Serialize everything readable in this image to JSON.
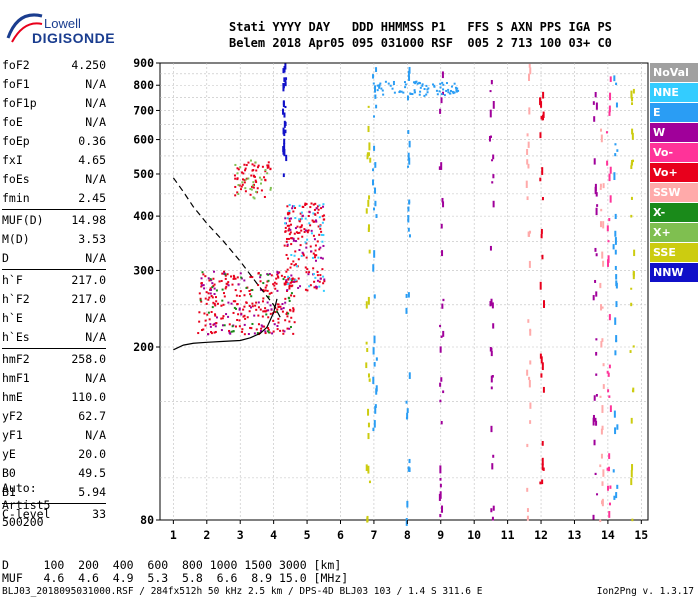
{
  "logo": {
    "line1": "Lowell",
    "line2": "DIGISONDE"
  },
  "header": {
    "labels": "Stati YYYY DAY   DDD HHMMSS P1   FFS S AXN PPS IGA PS",
    "values": "Belem 2018 Apr05 095 031000 RSF  005 2 713 100 03+ C0"
  },
  "params": {
    "group1": [
      {
        "name": "foF2",
        "value": "4.250"
      },
      {
        "name": "foF1",
        "value": "N/A"
      },
      {
        "name": "foF1p",
        "value": "N/A"
      },
      {
        "name": "foE",
        "value": "N/A"
      },
      {
        "name": "foEp",
        "value": "0.36"
      },
      {
        "name": "fxI",
        "value": "4.65"
      },
      {
        "name": "foEs",
        "value": "N/A"
      },
      {
        "name": "fmin",
        "value": "2.45"
      }
    ],
    "group2": [
      {
        "name": "MUF(D)",
        "value": "14.98"
      },
      {
        "name": "M(D)",
        "value": "3.53"
      },
      {
        "name": "D",
        "value": "N/A"
      }
    ],
    "group3": [
      {
        "name": "h`F",
        "value": "217.0"
      },
      {
        "name": "h`F2",
        "value": "217.0"
      },
      {
        "name": "h`E",
        "value": "N/A"
      },
      {
        "name": "h`Es",
        "value": "N/A"
      }
    ],
    "group4": [
      {
        "name": "hmF2",
        "value": "258.0"
      },
      {
        "name": "hmF1",
        "value": "N/A"
      },
      {
        "name": "hmE",
        "value": "110.0"
      },
      {
        "name": "yF2",
        "value": "62.7"
      },
      {
        "name": "yF1",
        "value": "N/A"
      },
      {
        "name": "yE",
        "value": "20.0"
      },
      {
        "name": "B0",
        "value": "49.5"
      },
      {
        "name": "B1",
        "value": "5.94"
      }
    ],
    "group5": [
      {
        "name": "C-level",
        "value": "33"
      }
    ]
  },
  "auto": {
    "line1": "Auto:",
    "line2": "Artist5",
    "line3": "500200"
  },
  "legend": [
    {
      "label": "NoVal",
      "color": "#a0a0a0"
    },
    {
      "label": "NNE",
      "color": "#33ccff"
    },
    {
      "label": "E",
      "color": "#2a9df4"
    },
    {
      "label": "W",
      "color": "#a0009a"
    },
    {
      "label": "Vo-",
      "color": "#ff3399"
    },
    {
      "label": "Vo+",
      "color": "#e8001c"
    },
    {
      "label": "SSW",
      "color": "#ffaaaa"
    },
    {
      "label": "X-",
      "color": "#1a8a1a"
    },
    {
      "label": "X+",
      "color": "#7fbf50"
    },
    {
      "label": "SSE",
      "color": "#cccc10"
    },
    {
      "label": "NNW",
      "color": "#1010c8"
    }
  ],
  "muf_table": {
    "d_row": "D     100  200  400  600  800 1000 1500 3000 [km]",
    "muf_row": "MUF   4.6  4.6  4.9  5.3  5.8  6.6  8.9 15.0 [MHz]"
  },
  "footer": "BLJ03_2018095031000.RSF / 284fx512h 50 kHz 2.5 km / DPS-4D BLJ03 103 / 1.4 S 311.6 E",
  "version": "Ion2Png v. 1.3.17",
  "chart_data": {
    "type": "scatter",
    "xlabel": "",
    "ylabel": "",
    "xlim": [
      0.6,
      15.2
    ],
    "ylim": [
      80,
      900
    ],
    "x_ticks": [
      1,
      2,
      3,
      4,
      5,
      6,
      7,
      8,
      9,
      10,
      11,
      12,
      13,
      14,
      15
    ],
    "y_ticks": [
      80,
      200,
      300,
      400,
      500,
      600,
      700,
      800,
      900
    ],
    "y_scale": "log",
    "grid": true,
    "legend_placement": "right",
    "profile_curve": [
      [
        1.0,
        197
      ],
      [
        1.3,
        202
      ],
      [
        1.6,
        204
      ],
      [
        2.0,
        205
      ],
      [
        2.5,
        206
      ],
      [
        3.0,
        207
      ],
      [
        3.3,
        210
      ],
      [
        3.6,
        215
      ],
      [
        3.8,
        222
      ],
      [
        4.0,
        240
      ],
      [
        4.1,
        258
      ]
    ],
    "muf_curve": [
      [
        1.0,
        490
      ],
      [
        1.3,
        455
      ],
      [
        1.6,
        420
      ],
      [
        2.0,
        385
      ],
      [
        2.5,
        350
      ],
      [
        3.0,
        315
      ],
      [
        3.5,
        280
      ],
      [
        4.0,
        250
      ],
      [
        4.25,
        230
      ]
    ],
    "trace_clusters": [
      {
        "x": [
          1.7,
          4.6
        ],
        "h": [
          215,
          300
        ],
        "color": "#e8001c",
        "n": 220
      },
      {
        "x": [
          1.7,
          4.6
        ],
        "h": [
          215,
          300
        ],
        "color": "#a0009a",
        "n": 70
      },
      {
        "x": [
          1.7,
          4.6
        ],
        "h": [
          215,
          300
        ],
        "color": "#1a8a1a",
        "n": 40
      },
      {
        "x": [
          2.8,
          3.9
        ],
        "h": [
          440,
          540
        ],
        "color": "#e8001c",
        "n": 60
      },
      {
        "x": [
          2.8,
          3.9
        ],
        "h": [
          440,
          540
        ],
        "color": "#7fbf50",
        "n": 25
      },
      {
        "x": [
          4.3,
          5.5
        ],
        "h": [
          270,
          430
        ],
        "color": "#e8001c",
        "n": 140
      },
      {
        "x": [
          4.3,
          5.5
        ],
        "h": [
          270,
          430
        ],
        "color": "#a0009a",
        "n": 40
      },
      {
        "x": [
          4.3,
          5.5
        ],
        "h": [
          270,
          430
        ],
        "color": "#33ccff",
        "n": 40
      },
      {
        "x": [
          6.9,
          9.5
        ],
        "h": [
          760,
          820
        ],
        "color": "#2a9df4",
        "n": 80
      }
    ],
    "vertical_streaks": [
      {
        "x": 4.3,
        "h": [
          500,
          900
        ],
        "color": "#1010c8"
      },
      {
        "x": 6.8,
        "h": [
          80,
          900
        ],
        "color": "#cccc10"
      },
      {
        "x": 7.0,
        "h": [
          80,
          900
        ],
        "color": "#2a9df4"
      },
      {
        "x": 8.0,
        "h": [
          80,
          900
        ],
        "color": "#2a9df4"
      },
      {
        "x": 9.0,
        "h": [
          80,
          900
        ],
        "color": "#a0009a"
      },
      {
        "x": 10.5,
        "h": [
          80,
          900
        ],
        "color": "#a0009a"
      },
      {
        "x": 11.6,
        "h": [
          80,
          900
        ],
        "color": "#ffaaaa"
      },
      {
        "x": 12.0,
        "h": [
          80,
          900
        ],
        "color": "#e8001c"
      },
      {
        "x": 13.6,
        "h": [
          80,
          900
        ],
        "color": "#a0009a"
      },
      {
        "x": 13.8,
        "h": [
          80,
          900
        ],
        "color": "#ffaaaa"
      },
      {
        "x": 14.0,
        "h": [
          80,
          900
        ],
        "color": "#ff3399"
      },
      {
        "x": 14.2,
        "h": [
          80,
          900
        ],
        "color": "#2a9df4"
      },
      {
        "x": 14.7,
        "h": [
          80,
          900
        ],
        "color": "#cccc10"
      }
    ]
  }
}
